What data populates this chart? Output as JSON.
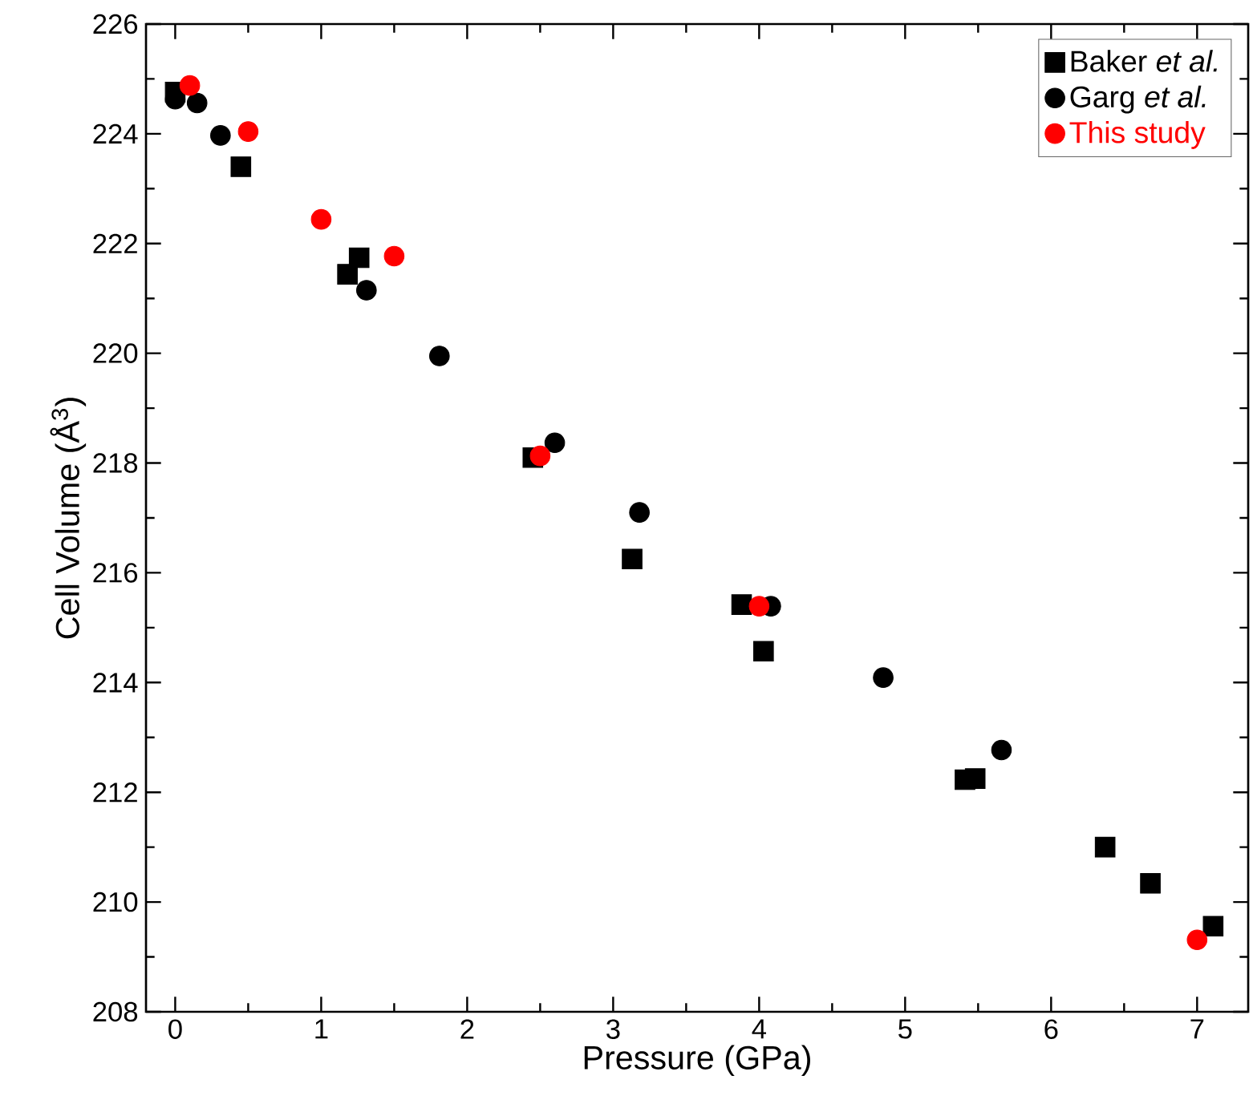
{
  "chart_data": {
    "type": "scatter",
    "xlabel": "Pressure (GPa)",
    "ylabel": "Cell Volume (Å$^{3}$)",
    "xlim": [
      -0.2,
      7.35
    ],
    "ylim": [
      208,
      226
    ],
    "xticks": [
      0,
      1,
      2,
      3,
      4,
      5,
      6,
      7
    ],
    "yticks": [
      208,
      210,
      212,
      214,
      216,
      218,
      220,
      222,
      224,
      226
    ],
    "grid": false,
    "legend": "top right",
    "series": [
      {
        "name": "Baker *et al.*",
        "color": "#000000",
        "marker": "square",
        "x": [
          0,
          0.45,
          1.18,
          1.26,
          2.45,
          3.13,
          3.88,
          4.03,
          5.41,
          5.48,
          6.37,
          6.68,
          7.11
        ],
        "values": [
          224.76,
          223.4,
          221.44,
          221.74,
          218.1,
          216.25,
          215.42,
          214.57,
          212.23,
          212.25,
          211.0,
          210.34,
          209.56
        ]
      },
      {
        "name": "Garg *et al.*",
        "color": "#000000",
        "marker": "circle",
        "x": [
          0,
          0.15,
          0.31,
          1.31,
          1.81,
          2.6,
          3.18,
          4.08,
          4.85,
          5.66
        ],
        "values": [
          224.63,
          224.56,
          223.97,
          221.15,
          219.95,
          218.37,
          217.1,
          215.39,
          214.09,
          212.77
        ]
      },
      {
        "name": "This study",
        "color": "#ff0000",
        "marker": "circle",
        "x": [
          0.1,
          0.5,
          1.0,
          1.5,
          2.5,
          4.0,
          7.0
        ],
        "values": [
          224.88,
          224.04,
          222.44,
          221.77,
          218.13,
          215.39,
          209.31
        ]
      }
    ]
  }
}
